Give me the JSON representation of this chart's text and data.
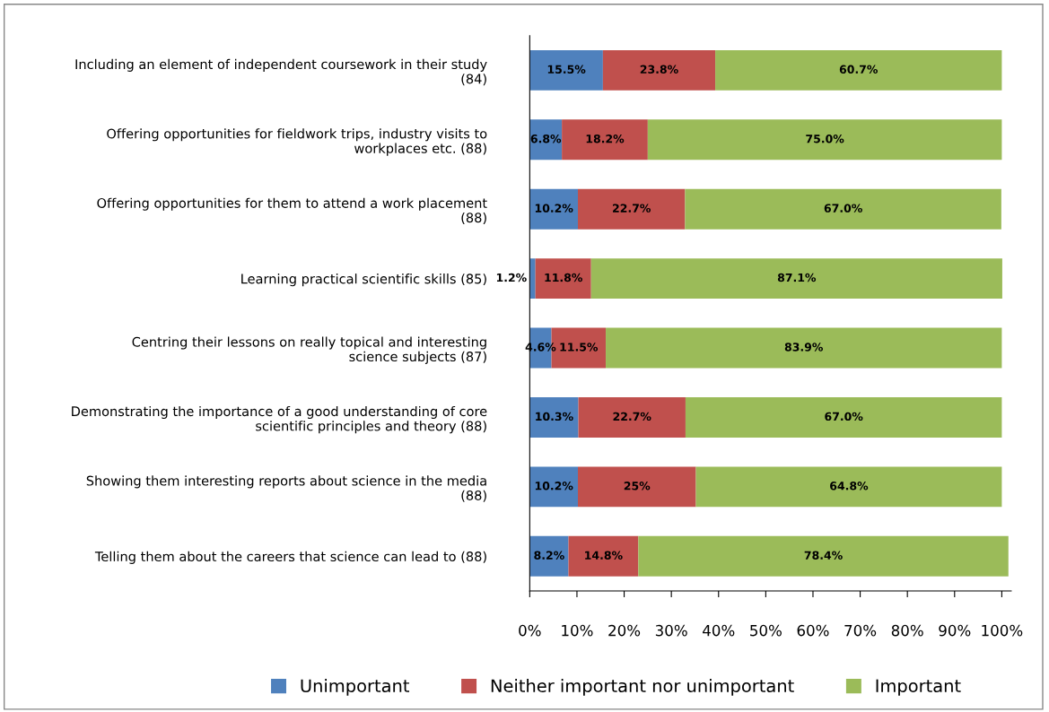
{
  "chart_data": {
    "type": "bar",
    "orientation": "horizontal",
    "stacked": true,
    "categories": [
      "Including an element of independent coursework in their study (84)",
      "Offering opportunities for fieldwork trips, industry visits to workplaces etc. (88)",
      "Offering opportunities for them to attend a work placement (88)",
      "Learning practical scientific skills (85)",
      "Centring their lessons on really topical and interesting science subjects (87)",
      "Demonstrating the importance of a good understanding of core scientific principles and theory (88)",
      "Showing them interesting reports about science in the media (88)",
      "Telling them about the careers that science can lead to (88)"
    ],
    "series": [
      {
        "name": "Unimportant",
        "color": "#4f81bd",
        "values": [
          15.5,
          6.8,
          10.2,
          1.2,
          4.6,
          10.3,
          10.2,
          8.2
        ],
        "value_labels": [
          "15.5%",
          "6.8%",
          "10.2%",
          "1.2%",
          "4.6%",
          "10.3%",
          "10.2%",
          "8.2%"
        ]
      },
      {
        "name": "Neither important nor unimportant",
        "color": "#c0504d",
        "values": [
          23.8,
          18.2,
          22.7,
          11.8,
          11.5,
          22.7,
          25,
          14.8
        ],
        "value_labels": [
          "23.8%",
          "18.2%",
          "22.7%",
          "11.8%",
          "11.5%",
          "22.7%",
          "25%",
          "14.8%"
        ]
      },
      {
        "name": "Important",
        "color": "#9bbb59",
        "values": [
          60.7,
          75.0,
          67.0,
          87.1,
          83.9,
          67.0,
          64.8,
          78.4
        ],
        "value_labels": [
          "60.7%",
          "75.0%",
          "67.0%",
          "87.1%",
          "83.9%",
          "67.0%",
          "64.8%",
          "78.4%"
        ]
      }
    ],
    "xlim": [
      0,
      102
    ],
    "xticks": [
      {
        "value": 0,
        "label": "0%"
      },
      {
        "value": 10,
        "label": "10%"
      },
      {
        "value": 20,
        "label": "20%"
      },
      {
        "value": 30,
        "label": "30%"
      },
      {
        "value": 40,
        "label": "40%"
      },
      {
        "value": 50,
        "label": "50%"
      },
      {
        "value": 60,
        "label": "60%"
      },
      {
        "value": 70,
        "label": "70%"
      },
      {
        "value": 80,
        "label": "80%"
      },
      {
        "value": 90,
        "label": "90%"
      },
      {
        "value": 100,
        "label": "100%"
      }
    ],
    "grid": false,
    "legend": "bottom"
  }
}
